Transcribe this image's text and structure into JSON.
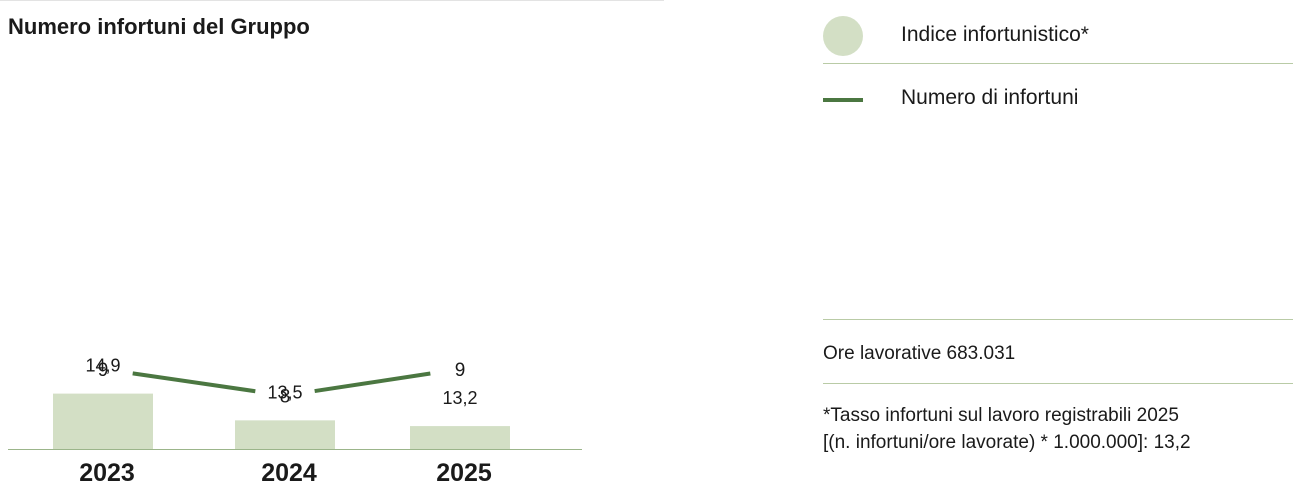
{
  "title": "Numero infortuni del Gruppo",
  "colors": {
    "bar": "#d3dfc5",
    "line": "#4b7741",
    "rule": "#b9cba6",
    "axis": "#9bb58a"
  },
  "legend": {
    "items": [
      {
        "label": "Indice infortunistico*",
        "icon": "circle-swatch"
      },
      {
        "label": "Numero di infortuni",
        "icon": "line-swatch"
      }
    ]
  },
  "notes": {
    "hours": "Ore lavorative 683.031",
    "footnote_line1": "*Tasso infortuni sul lavoro registrabili 2025",
    "footnote_line2": "[(n. infortuni/ore lavorate) * 1.000.000]: 13,2"
  },
  "chart_data": {
    "type": "bar",
    "title": "Numero infortuni del Gruppo",
    "categories": [
      "2023",
      "2024",
      "2025"
    ],
    "series": [
      {
        "name": "Indice infortunistico*",
        "type": "bar",
        "values": [
          14.9,
          13.5,
          13.2
        ],
        "labels": [
          "14,9",
          "13,5",
          "13,2"
        ]
      },
      {
        "name": "Numero di infortuni",
        "type": "line",
        "values": [
          9,
          8,
          9
        ],
        "labels": [
          "9",
          "8",
          "9"
        ]
      }
    ],
    "grid": false
  }
}
